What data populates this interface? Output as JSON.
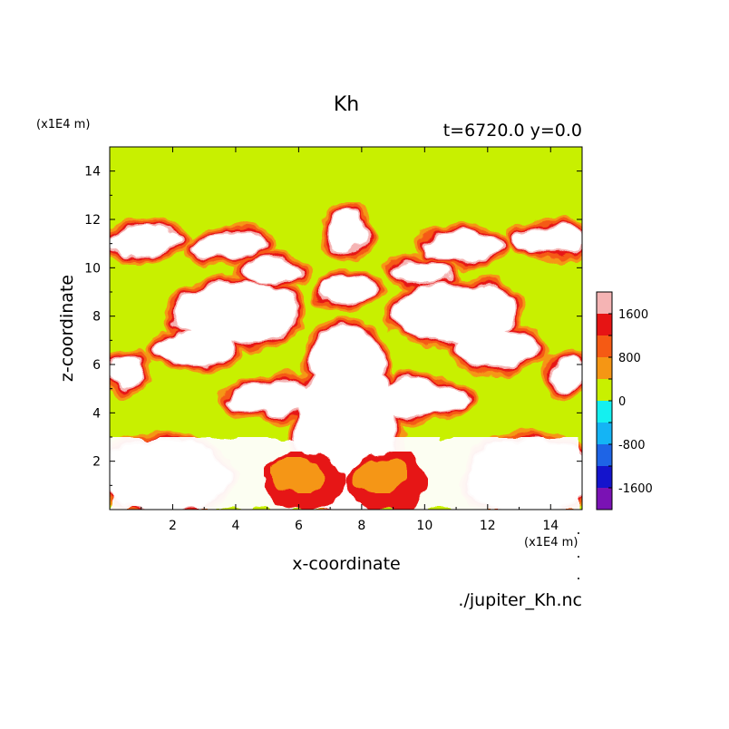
{
  "chart_data": {
    "type": "heatmap",
    "title": "Kh",
    "subtitle": "t=6720.0 y=0.0",
    "xlabel": "x-coordinate",
    "ylabel": "z-coordinate",
    "x_units": "(x1E4 m)",
    "y_units": "(x1E4 m)",
    "xlim": [
      0,
      15
    ],
    "ylim": [
      0,
      15
    ],
    "x_ticks": [
      2,
      4,
      6,
      8,
      10,
      12,
      14
    ],
    "y_ticks": [
      2,
      4,
      6,
      8,
      10,
      12,
      14
    ],
    "source_file": "./jupiter_Kh.nc",
    "colorbar": {
      "levels": [
        -2000,
        -1600,
        -1200,
        -800,
        -400,
        0,
        400,
        800,
        1200,
        1600,
        2000
      ],
      "colors": [
        "#7a12b4",
        "#1414cc",
        "#1e64e6",
        "#14b4f5",
        "#14f0f0",
        "#c8f000",
        "#f59614",
        "#f55a14",
        "#e61414",
        "#f5b4b4"
      ],
      "tick_labels": [
        "-1600",
        "-800",
        "0",
        "800",
        "1600"
      ],
      "tick_values": [
        -1600,
        -800,
        0,
        800,
        1600
      ]
    },
    "dominant_fill": "#c8f000",
    "saturated_fill": "#ffffff"
  }
}
